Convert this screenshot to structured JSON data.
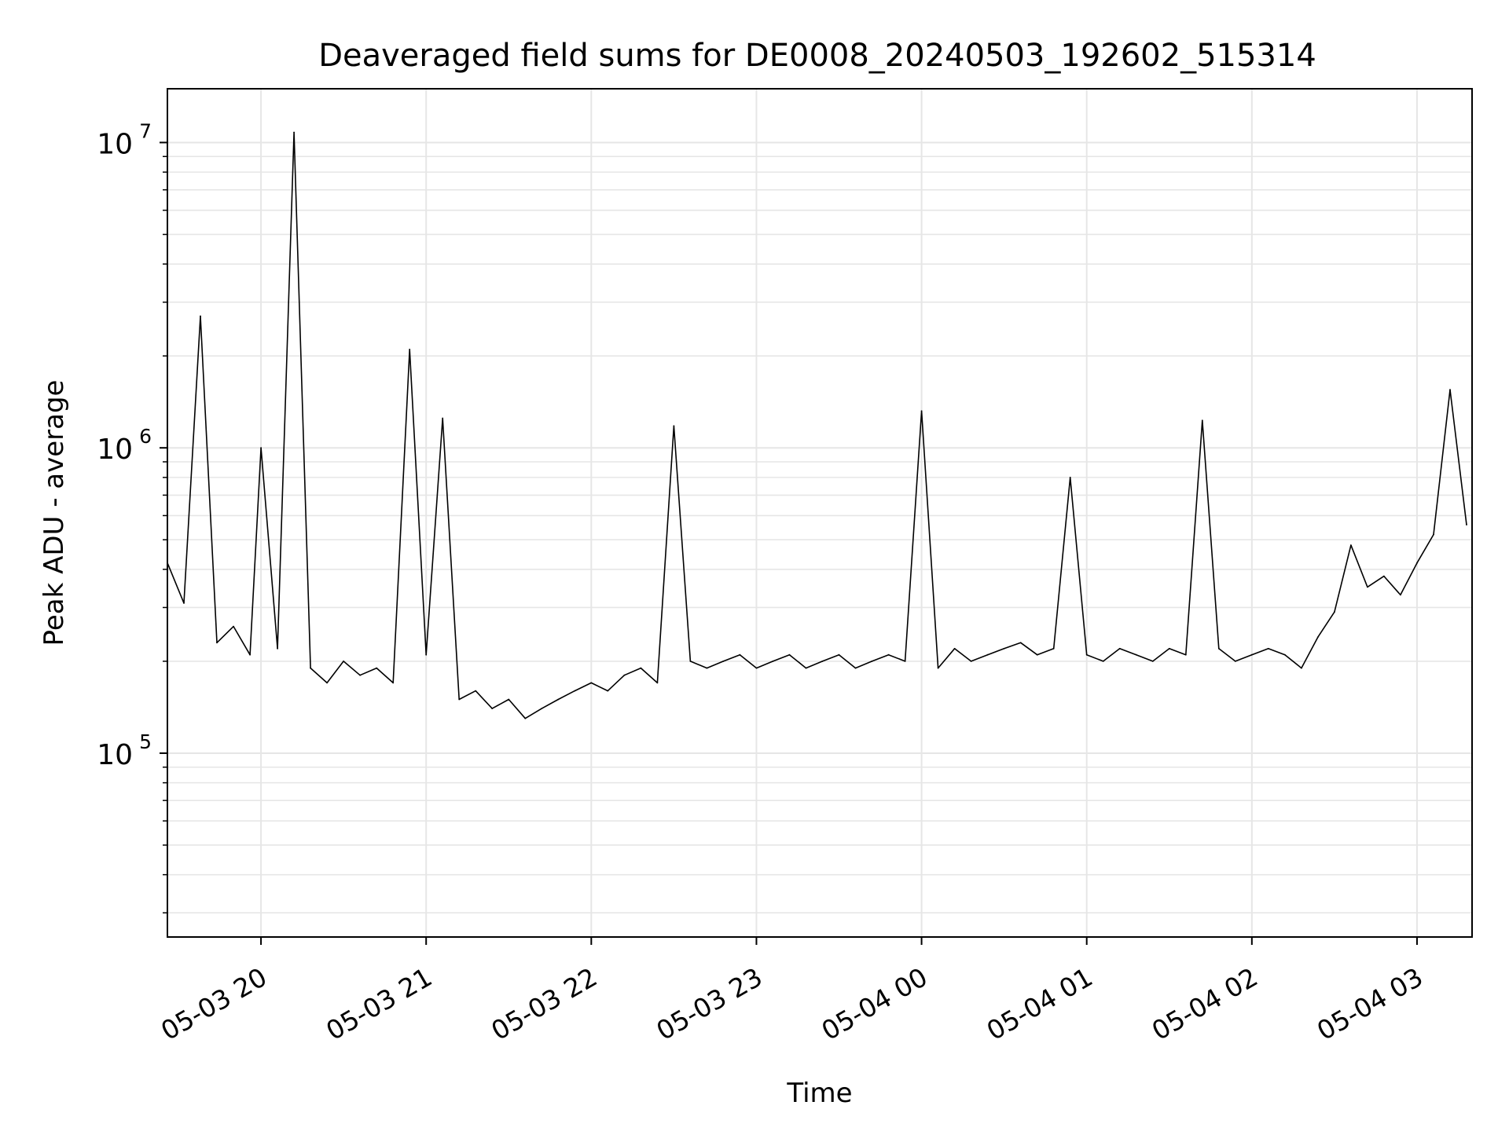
{
  "chart_data": {
    "type": "line",
    "title": "Deaveraged field sums for DE0008_20240503_192602_515314",
    "xlabel": "Time",
    "ylabel": "Peak ADU - average",
    "yscale": "log",
    "xlim": [
      "2024-05-03 19:26",
      "2024-05-04 03:20"
    ],
    "ylim": [
      25000,
      15000000
    ],
    "grid": true,
    "legend": "none",
    "line_color": "#000000",
    "x_ticks": [
      {
        "value": "2024-05-03 20:00",
        "label": "05-03 20"
      },
      {
        "value": "2024-05-03 21:00",
        "label": "05-03 21"
      },
      {
        "value": "2024-05-03 22:00",
        "label": "05-03 22"
      },
      {
        "value": "2024-05-03 23:00",
        "label": "05-03 23"
      },
      {
        "value": "2024-05-04 00:00",
        "label": "05-04 00"
      },
      {
        "value": "2024-05-04 01:00",
        "label": "05-04 01"
      },
      {
        "value": "2024-05-04 02:00",
        "label": "05-04 02"
      },
      {
        "value": "2024-05-04 03:00",
        "label": "05-04 03"
      }
    ],
    "y_ticks": [
      {
        "value": 100000,
        "base": "10",
        "exp": "5"
      },
      {
        "value": 1000000,
        "base": "10",
        "exp": "6"
      },
      {
        "value": 10000000,
        "base": "10",
        "exp": "7"
      }
    ],
    "series": [
      {
        "x": [
          "2024-05-03 19:26",
          "2024-05-03 19:32",
          "2024-05-03 19:38",
          "2024-05-03 19:44",
          "2024-05-03 19:50",
          "2024-05-03 19:56",
          "2024-05-03 20:00",
          "2024-05-03 20:06",
          "2024-05-03 20:12",
          "2024-05-03 20:18",
          "2024-05-03 20:24",
          "2024-05-03 20:30",
          "2024-05-03 20:36",
          "2024-05-03 20:42",
          "2024-05-03 20:48",
          "2024-05-03 20:54",
          "2024-05-03 21:00",
          "2024-05-03 21:06",
          "2024-05-03 21:12",
          "2024-05-03 21:18",
          "2024-05-03 21:24",
          "2024-05-03 21:30",
          "2024-05-03 21:36",
          "2024-05-03 21:42",
          "2024-05-03 21:48",
          "2024-05-03 21:54",
          "2024-05-03 22:00",
          "2024-05-03 22:06",
          "2024-05-03 22:12",
          "2024-05-03 22:18",
          "2024-05-03 22:24",
          "2024-05-03 22:30",
          "2024-05-03 22:36",
          "2024-05-03 22:42",
          "2024-05-03 22:48",
          "2024-05-03 22:54",
          "2024-05-03 23:00",
          "2024-05-03 23:06",
          "2024-05-03 23:12",
          "2024-05-03 23:18",
          "2024-05-03 23:24",
          "2024-05-03 23:30",
          "2024-05-03 23:36",
          "2024-05-03 23:42",
          "2024-05-03 23:48",
          "2024-05-03 23:54",
          "2024-05-04 00:00",
          "2024-05-04 00:06",
          "2024-05-04 00:12",
          "2024-05-04 00:18",
          "2024-05-04 00:24",
          "2024-05-04 00:30",
          "2024-05-04 00:36",
          "2024-05-04 00:42",
          "2024-05-04 00:48",
          "2024-05-04 00:54",
          "2024-05-04 01:00",
          "2024-05-04 01:06",
          "2024-05-04 01:12",
          "2024-05-04 01:18",
          "2024-05-04 01:24",
          "2024-05-04 01:30",
          "2024-05-04 01:36",
          "2024-05-04 01:42",
          "2024-05-04 01:48",
          "2024-05-04 01:54",
          "2024-05-04 02:00",
          "2024-05-04 02:06",
          "2024-05-04 02:12",
          "2024-05-04 02:18",
          "2024-05-04 02:24",
          "2024-05-04 02:30",
          "2024-05-04 02:36",
          "2024-05-04 02:42",
          "2024-05-04 02:48",
          "2024-05-04 02:54",
          "2024-05-04 03:00",
          "2024-05-04 03:06",
          "2024-05-04 03:12",
          "2024-05-04 03:18"
        ],
        "y": [
          420000,
          310000,
          2700000,
          230000,
          260000,
          210000,
          1000000,
          220000,
          10800000,
          190000,
          170000,
          200000,
          180000,
          190000,
          170000,
          2100000,
          210000,
          1250000,
          150000,
          160000,
          140000,
          150000,
          130000,
          140000,
          150000,
          160000,
          170000,
          160000,
          180000,
          190000,
          170000,
          1180000,
          200000,
          190000,
          200000,
          210000,
          190000,
          200000,
          210000,
          190000,
          200000,
          210000,
          190000,
          200000,
          210000,
          200000,
          1320000,
          190000,
          220000,
          200000,
          210000,
          220000,
          230000,
          210000,
          220000,
          800000,
          210000,
          200000,
          220000,
          210000,
          200000,
          220000,
          210000,
          1230000,
          220000,
          200000,
          210000,
          220000,
          210000,
          190000,
          240000,
          290000,
          480000,
          350000,
          380000,
          330000,
          420000,
          520000,
          1550000,
          560000
        ]
      }
    ]
  }
}
